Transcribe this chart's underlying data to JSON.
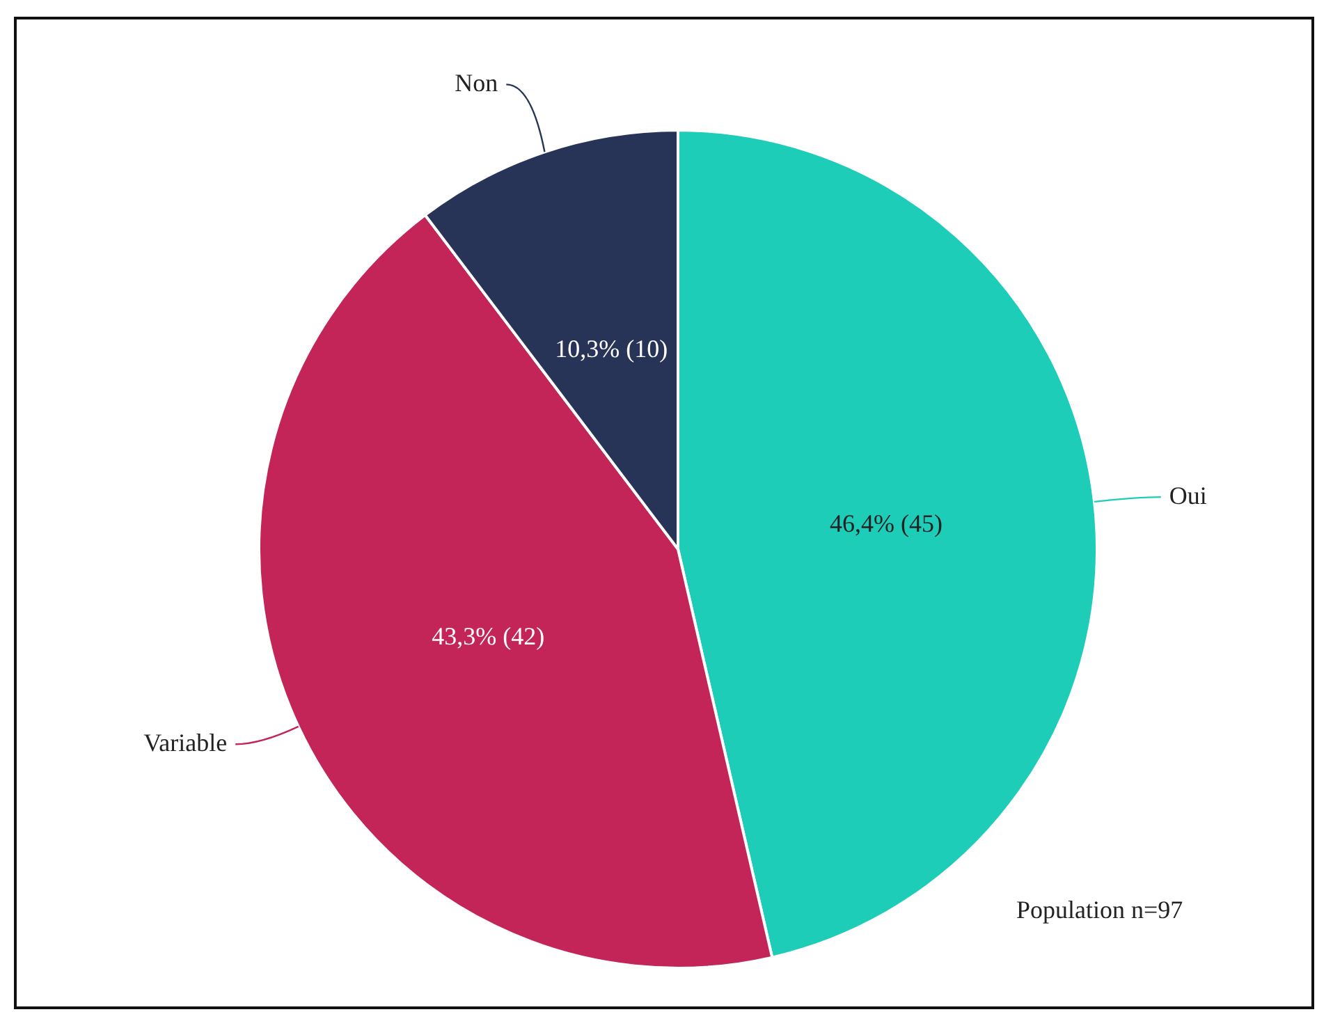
{
  "chart_data": {
    "type": "pie",
    "categories": [
      "Oui",
      "Variable",
      "Non"
    ],
    "values": [
      45,
      42,
      10
    ],
    "colors": [
      "#1ecdb8",
      "#c42558",
      "#283358"
    ],
    "value_labels": [
      "46,4% (45)",
      "43,3% (42)",
      "10,3% (10)"
    ],
    "annotations": [
      "Population n=97"
    ]
  }
}
